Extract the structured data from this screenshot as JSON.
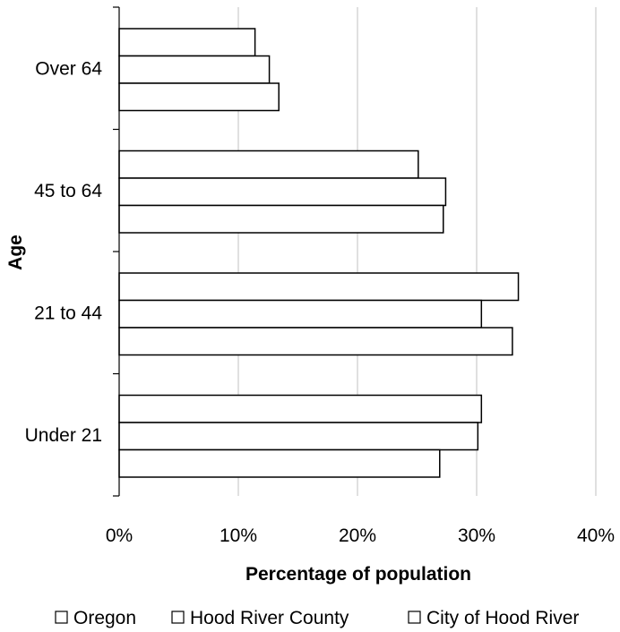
{
  "chart_data": {
    "type": "bar",
    "orientation": "horizontal",
    "categories": [
      "Over 64",
      "45 to 64",
      "21 to 44",
      "Under 21"
    ],
    "series": [
      {
        "name": "Oregon",
        "values": [
          11.4,
          25.1,
          33.5,
          30.4
        ]
      },
      {
        "name": "Hood River County",
        "values": [
          12.6,
          27.4,
          30.4,
          30.1
        ]
      },
      {
        "name": "City of Hood River",
        "values": [
          13.4,
          27.2,
          33.0,
          26.9
        ]
      }
    ],
    "title": "",
    "xlabel": "Percentage of population",
    "ylabel": "Age",
    "xlim": [
      0,
      40
    ],
    "xticks": [
      "0%",
      "10%",
      "20%",
      "30%",
      "40%"
    ],
    "grid": "vertical",
    "legend": "bottom",
    "colors": {
      "bar_fill": "#ffffff",
      "bar_stroke": "#000000",
      "grid": "#c0c0c0"
    }
  }
}
